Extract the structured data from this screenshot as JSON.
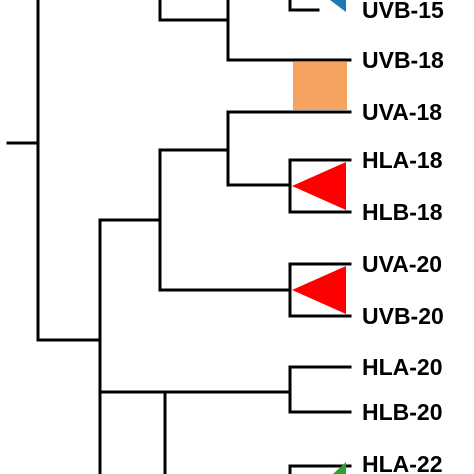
{
  "tree": {
    "leaves": [
      {
        "id": "uvb15",
        "label": "UVB-15"
      },
      {
        "id": "uvb18",
        "label": "UVB-18"
      },
      {
        "id": "uva18",
        "label": "UVA-18"
      },
      {
        "id": "hla18",
        "label": "HLA-18"
      },
      {
        "id": "hlb18",
        "label": "HLB-18"
      },
      {
        "id": "uva20",
        "label": "UVA-20"
      },
      {
        "id": "uvb20",
        "label": "UVB-20"
      },
      {
        "id": "hla20",
        "label": "HLA-20"
      },
      {
        "id": "hlb20",
        "label": "HLB-20"
      },
      {
        "id": "hla22",
        "label": "HLA-22"
      }
    ],
    "markers": [
      {
        "id": "orange-square",
        "shape": "square",
        "color": "#F4A460"
      },
      {
        "id": "red-triangle-18",
        "shape": "triangle",
        "color": "#FF0000"
      },
      {
        "id": "red-triangle-20",
        "shape": "triangle",
        "color": "#FF0000"
      },
      {
        "id": "blue-triangle",
        "shape": "triangle",
        "color": "#1F77B4"
      },
      {
        "id": "green-triangle",
        "shape": "triangle",
        "color": "#2CA02C"
      }
    ]
  }
}
